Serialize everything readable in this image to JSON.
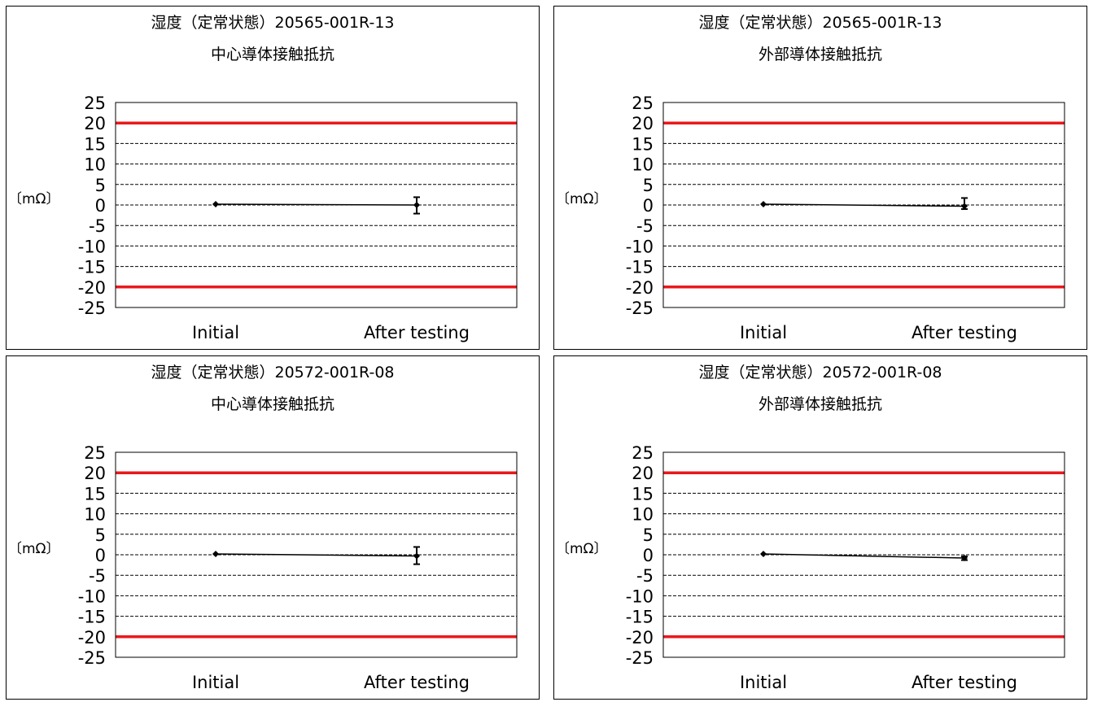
{
  "colors": {
    "limit_line": "#e8191c",
    "series": "#000000",
    "grid": "#000000"
  },
  "chart_data": [
    {
      "type": "line",
      "title": "湿度（定常状態）20565-001R-13",
      "subtitle": "中心導体接触抵抗",
      "ylabel": "〔mΩ〕",
      "xlabel": "",
      "categories": [
        "Initial",
        "After testing"
      ],
      "ylim": [
        -25,
        25
      ],
      "yticks": [
        25,
        20,
        15,
        10,
        5,
        0,
        -5,
        -10,
        -15,
        -20,
        -25
      ],
      "grid": true,
      "limits": [
        20,
        -20
      ],
      "series": [
        {
          "name": "",
          "values": [
            0.2,
            0
          ],
          "err_low": [
            0,
            2.1
          ],
          "err_high": [
            0,
            1.9
          ]
        }
      ]
    },
    {
      "type": "line",
      "title": "湿度（定常状態）20565-001R-13",
      "subtitle": "外部導体接触抵抗",
      "ylabel": "〔mΩ〕",
      "xlabel": "",
      "categories": [
        "Initial",
        "After testing"
      ],
      "ylim": [
        -25,
        25
      ],
      "yticks": [
        25,
        20,
        15,
        10,
        5,
        0,
        -5,
        -10,
        -15,
        -20,
        -25
      ],
      "grid": true,
      "limits": [
        20,
        -20
      ],
      "series": [
        {
          "name": "",
          "values": [
            0.2,
            -0.3
          ],
          "err_low": [
            0,
            0.7
          ],
          "err_high": [
            0,
            2
          ]
        }
      ]
    },
    {
      "type": "line",
      "title": "湿度（定常状態）20572-001R-08",
      "subtitle": "中心導体接触抵抗",
      "ylabel": "〔mΩ〕",
      "xlabel": "",
      "categories": [
        "Initial",
        "After testing"
      ],
      "ylim": [
        -25,
        25
      ],
      "yticks": [
        25,
        20,
        15,
        10,
        5,
        0,
        -5,
        -10,
        -15,
        -20,
        -25
      ],
      "grid": true,
      "limits": [
        20,
        -20
      ],
      "series": [
        {
          "name": "",
          "values": [
            0.2,
            -0.3
          ],
          "err_low": [
            0,
            2
          ],
          "err_high": [
            0,
            2.2
          ]
        }
      ]
    },
    {
      "type": "line",
      "title": "湿度（定常状態）20572-001R-08",
      "subtitle": "外部導体接触抵抗",
      "ylabel": "〔mΩ〕",
      "xlabel": "",
      "categories": [
        "Initial",
        "After testing"
      ],
      "ylim": [
        -25,
        25
      ],
      "yticks": [
        25,
        20,
        15,
        10,
        5,
        0,
        -5,
        -10,
        -15,
        -20,
        -25
      ],
      "grid": true,
      "limits": [
        20,
        -20
      ],
      "series": [
        {
          "name": "",
          "values": [
            0.2,
            -0.8
          ],
          "err_low": [
            0,
            0.5
          ],
          "err_high": [
            0,
            0.4
          ]
        }
      ]
    }
  ]
}
